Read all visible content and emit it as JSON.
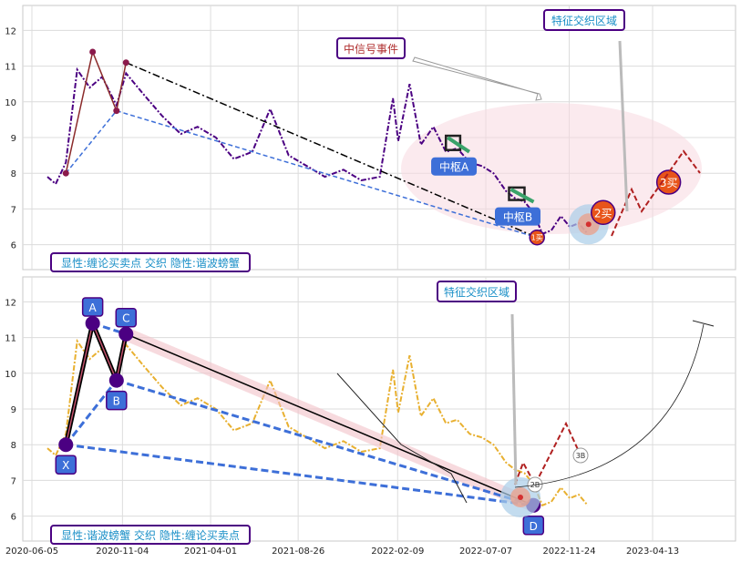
{
  "colors": {
    "price_top": "#4b0082",
    "price_bottom": "#e8b030",
    "box_border": "#4b0082",
    "label_text": "#1a8fc7",
    "signal_text": "#b03030",
    "pivot_blue": "#3d6fd8",
    "highlight_zone": "#f7d8e0",
    "buy_orange": "#e8541a"
  },
  "chart_data": [
    {
      "type": "line",
      "panel": "top",
      "ylim": [
        5.3,
        12.7
      ],
      "y_ticks": [
        "6",
        "7",
        "8",
        "9",
        "10",
        "11",
        "12"
      ],
      "grid": true,
      "series": [
        {
          "x": [
            "2020-07-01",
            "2020-07-15",
            "2020-08-01",
            "2020-08-20",
            "2020-09-10",
            "2020-10-01",
            "2020-10-25",
            "2020-11-10",
            "2020-12-10",
            "2021-01-10",
            "2021-02-10",
            "2021-03-10",
            "2021-04-10",
            "2021-05-10",
            "2021-06-10",
            "2021-07-10",
            "2021-08-10",
            "2021-09-10",
            "2021-10-10",
            "2021-11-10",
            "2021-12-10",
            "2022-01-10",
            "2022-02-01",
            "2022-02-10",
            "2022-03-01",
            "2022-03-20",
            "2022-04-10",
            "2022-05-01",
            "2022-05-20",
            "2022-06-10",
            "2022-07-01",
            "2022-07-20",
            "2022-08-10",
            "2022-08-25",
            "2022-09-10",
            "2022-09-25",
            "2022-10-10",
            "2022-10-25",
            "2022-11-10",
            "2022-11-25",
            "2022-12-10",
            "2022-12-25"
          ],
          "y": [
            7.9,
            7.7,
            8.3,
            10.9,
            10.4,
            10.7,
            9.9,
            10.8,
            10.2,
            9.6,
            9.1,
            9.3,
            9.0,
            8.4,
            8.6,
            9.8,
            8.5,
            8.2,
            7.9,
            8.1,
            7.8,
            7.9,
            10.1,
            8.9,
            10.5,
            8.8,
            9.3,
            8.6,
            8.7,
            8.3,
            8.2,
            8.0,
            7.5,
            7.3,
            7.2,
            6.9,
            6.3,
            6.4,
            6.8,
            6.5,
            6.6,
            6.3
          ]
        }
      ],
      "bi_points": [
        {
          "x": "2020-08-01",
          "y": 8.0
        },
        {
          "x": "2020-09-15",
          "y": 11.4
        },
        {
          "x": "2020-10-25",
          "y": 9.75
        },
        {
          "x": "2020-11-10",
          "y": 11.1
        },
        {
          "x": "2022-10-01",
          "y": 6.2
        }
      ],
      "pivots": [
        {
          "label": "中枢A",
          "x0": "2022-05-01",
          "x1": "2022-05-25",
          "y0": 8.65,
          "y1": 9.05
        },
        {
          "label": "中枢B",
          "x0": "2022-08-15",
          "x1": "2022-09-10",
          "y0": 7.25,
          "y1": 7.6
        }
      ],
      "buy_points": [
        {
          "label": "1买",
          "x": "2022-10-01",
          "y": 6.2
        },
        {
          "label": "2买",
          "x": "2023-01-20",
          "y": 6.9
        },
        {
          "label": "3买",
          "x": "2023-05-10",
          "y": 7.75
        }
      ],
      "annotations": {
        "signal_event": "中信号事件",
        "feature_zone": "特征交织区域"
      },
      "legend_text": "显性:缠论买卖点 交织 隐性:谐波螃蟹"
    },
    {
      "type": "line",
      "panel": "bottom",
      "ylim": [
        5.3,
        12.7
      ],
      "y_ticks": [
        "6",
        "7",
        "8",
        "9",
        "10",
        "11",
        "12"
      ],
      "x_ticks": [
        "2020-06-05",
        "2020-11-04",
        "2021-04-01",
        "2021-08-26",
        "2022-02-09",
        "2022-07-07",
        "2022-11-24",
        "2023-04-13"
      ],
      "grid": true,
      "harmonic_points": [
        {
          "label": "X",
          "x": "2020-08-01",
          "y": 8.0
        },
        {
          "label": "A",
          "x": "2020-09-15",
          "y": 11.4
        },
        {
          "label": "B",
          "x": "2020-10-25",
          "y": 9.8
        },
        {
          "label": "C",
          "x": "2020-11-10",
          "y": 11.1
        },
        {
          "label": "D",
          "x": "2022-09-25",
          "y": 6.3
        }
      ],
      "projections": [
        "2B",
        "3B"
      ],
      "annotations": {
        "feature_zone": "特征交织区域"
      },
      "legend_text": "显性:谐波螃蟹 交织 隐性:缠论买卖点"
    }
  ]
}
